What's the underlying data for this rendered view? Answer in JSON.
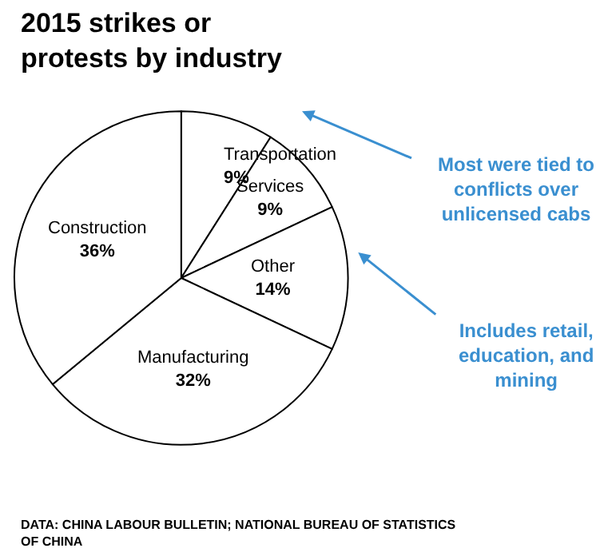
{
  "chart_data": {
    "type": "pie",
    "title": "2015 strikes or protests by industry",
    "categories": [
      "Transportation",
      "Services",
      "Other",
      "Manufacturing",
      "Construction"
    ],
    "values": [
      9,
      9,
      14,
      32,
      36
    ],
    "value_labels": [
      "9%",
      "9%",
      "14%",
      "32%",
      "36%"
    ],
    "colors": [
      "#ffffff",
      "#ffffff",
      "#ffffff",
      "#ffffff",
      "#ffffff"
    ],
    "annotations": [
      {
        "text": "Most were tied to conflicts over unlicensed cabs"
      },
      {
        "text": "Includes retail, education, and mining"
      },
      "DATA: CHINA LABOUR BULLETIN; NATIONAL BUREAU OF STATISTICS OF CHINA"
    ],
    "legend": false
  }
}
